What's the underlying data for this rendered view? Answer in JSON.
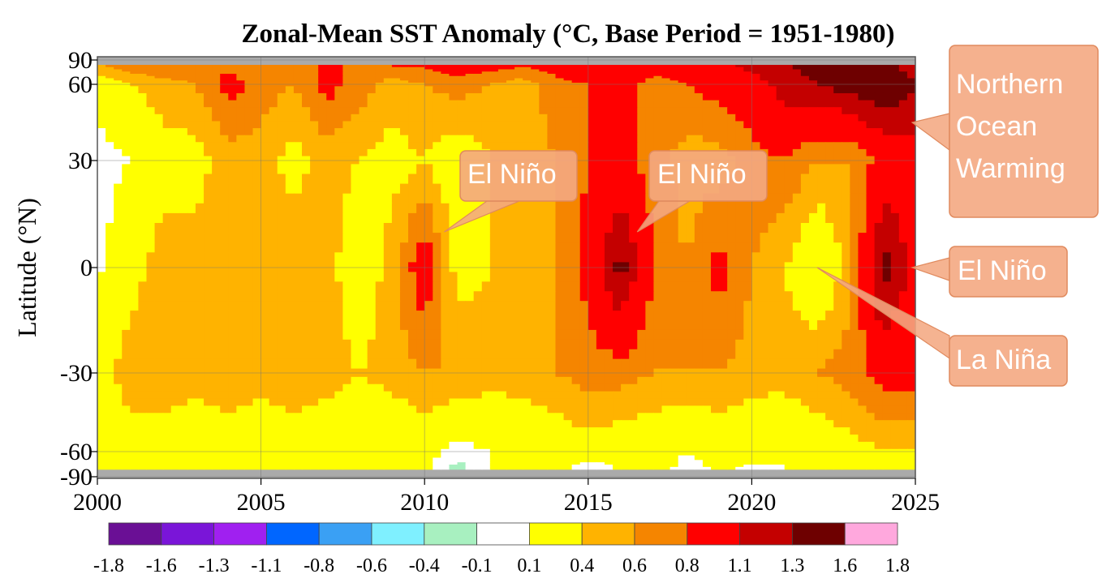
{
  "chart_data": {
    "type": "heatmap",
    "title": "Zonal-Mean SST Anomaly (°C, Base Period = 1951-1980)",
    "xlabel": "",
    "ylabel": "Latitude (°N)",
    "xlim": [
      2000,
      2025
    ],
    "ylim": [
      -90,
      90
    ],
    "x_ticks": [
      "2000",
      "2005",
      "2010",
      "2015",
      "2020",
      "2025"
    ],
    "x_tick_values": [
      2000,
      2005,
      2010,
      2015,
      2020,
      2025
    ],
    "y_ticks": [
      "90",
      "60",
      "30",
      "0",
      "-30",
      "-60",
      "-90"
    ],
    "y_tick_values": [
      90,
      60,
      30,
      0,
      -30,
      -60,
      -90
    ],
    "no_data_color": "#aaaaaa",
    "colorbar": {
      "ticks": [
        "-1.8",
        "-1.6",
        "-1.3",
        "-1.1",
        "-0.8",
        "-0.6",
        "-0.4",
        "-0.1",
        "0.1",
        "0.4",
        "0.6",
        "0.8",
        "1.1",
        "1.3",
        "1.6",
        "1.8"
      ],
      "colors": [
        "#6a0f95",
        "#7a15d8",
        "#a020f0",
        "#0066ff",
        "#3aa0f4",
        "#7ff0ff",
        "#a8f0c0",
        "#ffffff",
        "#ffff00",
        "#ffb300",
        "#f58500",
        "#ff0000",
        "#c40000",
        "#6e0000",
        "#ffa8dd"
      ]
    },
    "grid": {
      "x": [
        2000,
        2001,
        2002,
        2003,
        2004,
        2005,
        2006,
        2007,
        2008,
        2009,
        2010,
        2011,
        2012,
        2013,
        2014,
        2015,
        2016,
        2017,
        2018,
        2019,
        2020,
        2021,
        2022,
        2023,
        2024,
        2025
      ],
      "y": [
        90,
        60,
        30,
        0,
        -30,
        -60,
        -90
      ],
      "values": [
        [
          0.7,
          0.8,
          0.9,
          0.8,
          0.7,
          0.7,
          0.7,
          0.8,
          0.8,
          0.9,
          0.9,
          1.0,
          1.0,
          0.9,
          1.0,
          1.2,
          1.1,
          1.0,
          1.0,
          1.1,
          1.2,
          1.3,
          1.4,
          1.4,
          1.3,
          1.2
        ],
        [
          0.2,
          0.4,
          0.5,
          0.6,
          0.9,
          0.7,
          0.6,
          0.9,
          0.7,
          0.5,
          0.6,
          0.7,
          0.6,
          0.5,
          0.7,
          0.8,
          0.9,
          0.7,
          0.8,
          0.9,
          1.0,
          1.2,
          1.3,
          1.4,
          1.5,
          1.3
        ],
        [
          0.0,
          0.1,
          0.3,
          0.3,
          0.5,
          0.5,
          0.3,
          0.5,
          0.4,
          0.3,
          0.4,
          0.2,
          0.4,
          0.5,
          0.6,
          0.8,
          0.9,
          0.7,
          0.5,
          0.5,
          0.7,
          0.8,
          0.6,
          0.6,
          0.9,
          1.0
        ],
        [
          0.05,
          0.3,
          0.5,
          0.5,
          0.6,
          0.5,
          0.6,
          0.5,
          0.2,
          0.5,
          1.0,
          0.3,
          0.4,
          0.5,
          0.6,
          0.9,
          1.4,
          0.8,
          0.6,
          0.9,
          0.6,
          0.4,
          0.1,
          0.5,
          1.4,
          1.0
        ],
        [
          0.3,
          0.5,
          0.6,
          0.5,
          0.5,
          0.5,
          0.6,
          0.5,
          0.4,
          0.5,
          0.6,
          0.6,
          0.5,
          0.5,
          0.6,
          0.7,
          0.7,
          0.6,
          0.6,
          0.6,
          0.5,
          0.5,
          0.6,
          0.7,
          0.9,
          0.9
        ],
        [
          0.2,
          0.3,
          0.2,
          0.2,
          0.3,
          0.2,
          0.2,
          0.2,
          0.1,
          0.1,
          0.2,
          0.0,
          0.1,
          0.2,
          0.2,
          0.3,
          0.2,
          0.2,
          0.1,
          0.2,
          0.2,
          0.1,
          0.2,
          0.3,
          0.4,
          0.4
        ],
        [
          0.3,
          0.4,
          0.2,
          0.3,
          0.4,
          0.3,
          0.2,
          0.2,
          0.1,
          0.1,
          0.2,
          -0.3,
          0.1,
          0.1,
          0.2,
          -0.2,
          0.1,
          0.2,
          0.0,
          0.1,
          0.0,
          0.1,
          0.2,
          0.2,
          0.3,
          0.3
        ]
      ]
    },
    "annotations": [
      {
        "name": "northern-ocean-warming",
        "lines": [
          "Northern",
          "Ocean",
          "Warming"
        ],
        "x": 2024.9,
        "y": 45
      },
      {
        "name": "el-nino-2010",
        "lines": [
          "El Niño"
        ],
        "x": 2010.6,
        "y": 10
      },
      {
        "name": "el-nino-2015",
        "lines": [
          "El Niño"
        ],
        "x": 2016.5,
        "y": 10
      },
      {
        "name": "el-nino-2023",
        "lines": [
          "El Niño"
        ],
        "x": 2024.9,
        "y": 0
      },
      {
        "name": "la-nina-2022",
        "lines": [
          "La Niña"
        ],
        "x": 2022.0,
        "y": 0
      }
    ]
  }
}
